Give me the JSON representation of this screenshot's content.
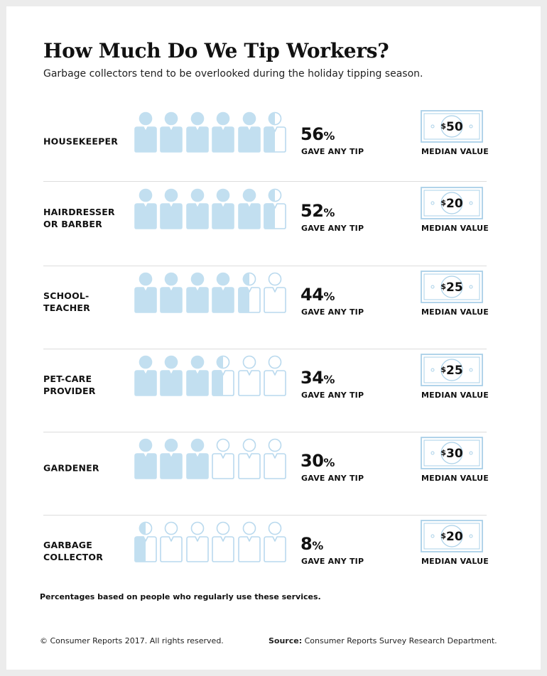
{
  "chart_data": {
    "type": "pictograph",
    "title": "How Much Do We Tip Workers?",
    "subtitle": "Garbage collectors tend to be overlooked during the holiday tipping season.",
    "metric_label": "GAVE ANY TIP",
    "median_label": "MEDIAN VALUE",
    "icon_units": 6,
    "icon_max_percent": 60,
    "rows": [
      {
        "label": "HOUSEKEEPER",
        "percent": 56,
        "percent_text": "56",
        "median": "$50"
      },
      {
        "label": "HAIRDRESSER\nOR BARBER",
        "percent": 52,
        "percent_text": "52",
        "median": "$20"
      },
      {
        "label": "SCHOOL-\nTEACHER",
        "percent": 44,
        "percent_text": "44",
        "median": "$25"
      },
      {
        "label": "PET-CARE\nPROVIDER",
        "percent": 34,
        "percent_text": "34",
        "median": "$25"
      },
      {
        "label": "GARDENER",
        "percent": 30,
        "percent_text": "30",
        "median": "$30"
      },
      {
        "label": "GARBAGE\nCOLLECTOR",
        "percent": 8,
        "percent_text": "8",
        "median": "$20"
      }
    ],
    "colors": {
      "fill": "#c2dff0",
      "outline": "#b9d9ee",
      "bill": "#a9d0e8"
    }
  },
  "percent_sign": "%",
  "footnote": "Percentages based on people who regularly use these services.",
  "copyright": "© Consumer Reports 2017. All rights reserved.",
  "source_label": "Source:",
  "source_text": "Consumer Reports Survey Research Department."
}
